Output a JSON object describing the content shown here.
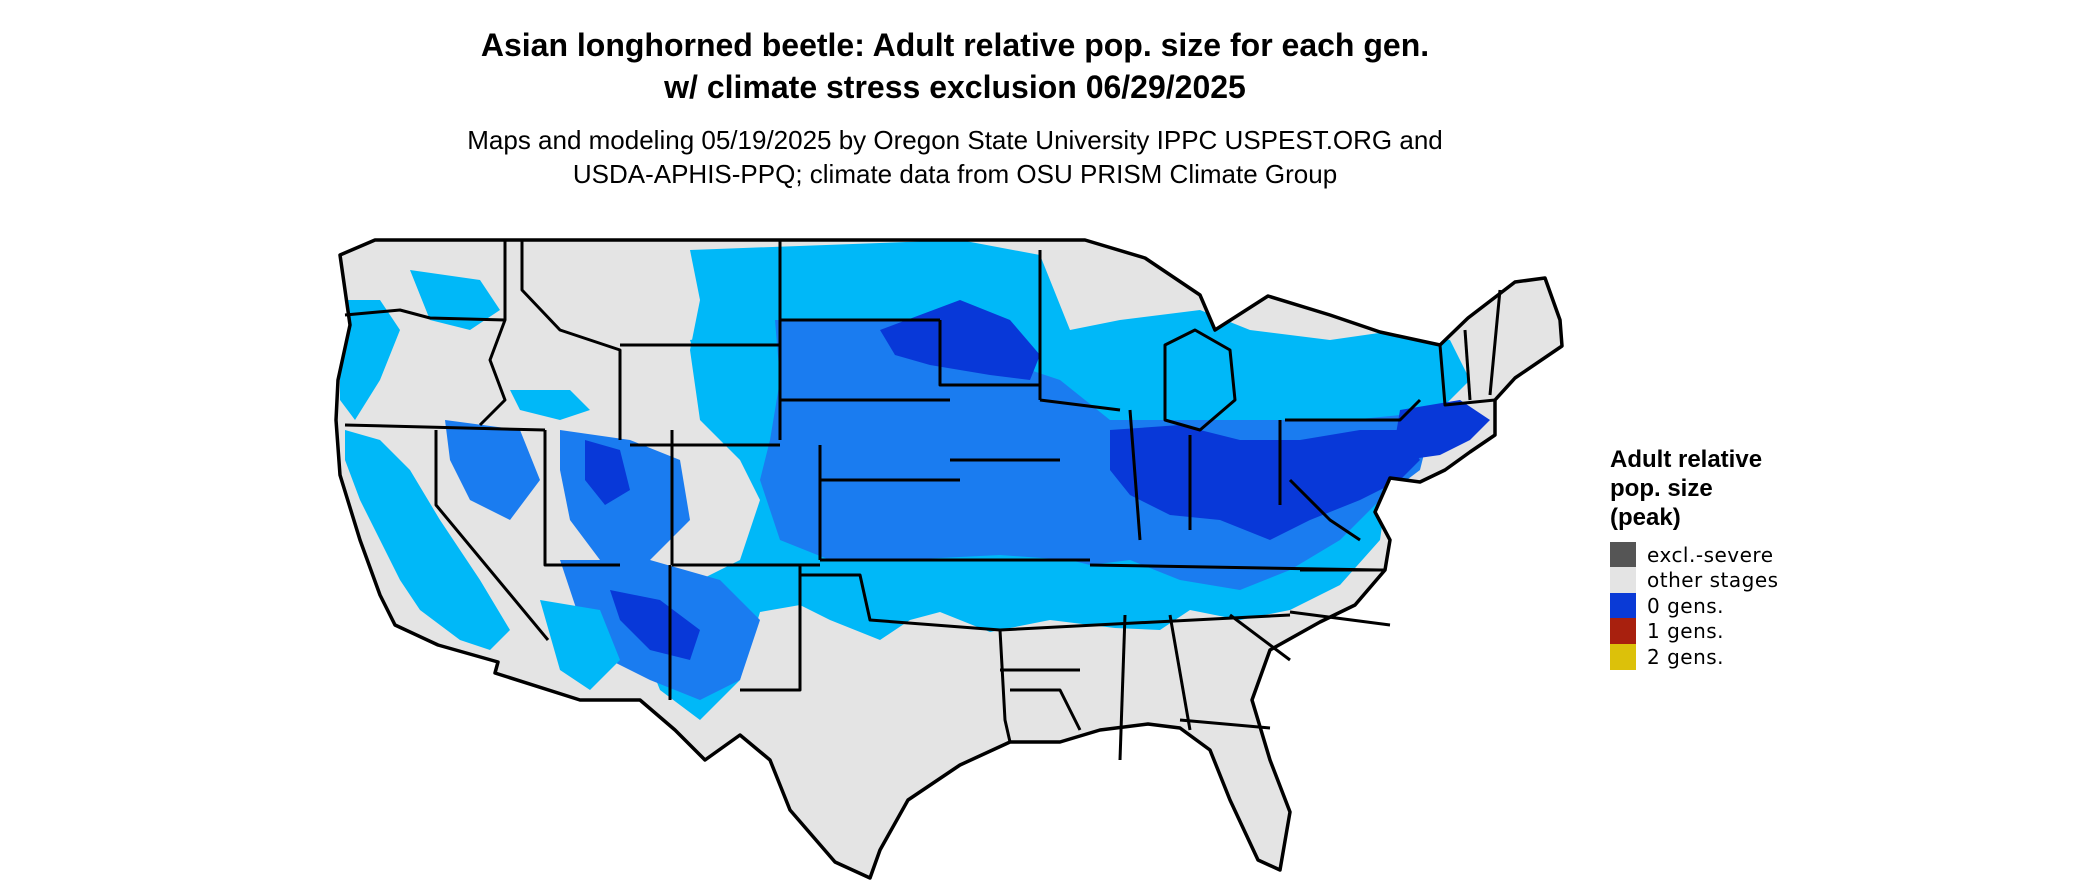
{
  "title": {
    "line1": "Asian longhorned beetle: Adult relative pop. size for each gen.",
    "line2": "w/ climate stress exclusion 06/29/2025"
  },
  "subtitle": {
    "line1": "Maps and modeling 05/19/2025 by Oregon State University IPPC USPEST.ORG and",
    "line2": "USDA-APHIS-PPQ; climate data from OSU PRISM Climate Group"
  },
  "legend": {
    "title_lines": [
      "Adult relative",
      "pop. size",
      "(peak)"
    ],
    "items": [
      {
        "label": "excl.-severe",
        "color": "#555555"
      },
      {
        "label": "other stages",
        "color": "#e4e4e4"
      },
      {
        "label": "0 gens.",
        "color": "#0a3ad6"
      },
      {
        "label": "1 gens.",
        "color": "#a8200e"
      },
      {
        "label": "2 gens.",
        "color": "#dcc10a"
      }
    ]
  },
  "map_colors": {
    "background_land": "#e4e4e4",
    "light_blue": "#00b8f8",
    "medium_blue": "#1a7cf0",
    "dark_blue": "#0838d8",
    "border": "#000000"
  }
}
